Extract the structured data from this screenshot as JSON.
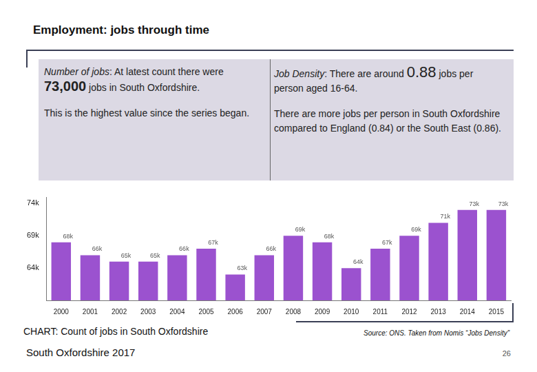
{
  "header": {
    "title": "Employment: jobs through time"
  },
  "panels": [
    {
      "label": "Number of jobs",
      "lead": ": At latest count there were ",
      "highlight": "73,000",
      "rest": " jobs in South Oxfordshire.",
      "note": "This is the highest value since the series began."
    },
    {
      "label": "Job Density",
      "lead": ": There are around ",
      "highlight": "0.88",
      "rest": " jobs per person aged 16-64.",
      "note": "There are more jobs per person in South Oxfordshire compared to England (0.84) or the South East (0.86)."
    }
  ],
  "chart_data": {
    "type": "bar",
    "title": "CHART: Count of jobs in South Oxfordshire",
    "categories": [
      "2000",
      "2001",
      "2002",
      "2003",
      "2004",
      "2005",
      "2006",
      "2007",
      "2008",
      "2009",
      "2010",
      "2011",
      "2012",
      "2013",
      "2014",
      "2015"
    ],
    "values": [
      68,
      66,
      65,
      65,
      66,
      67,
      63,
      66,
      69,
      68,
      64,
      67,
      69,
      71,
      73,
      73
    ],
    "value_labels": [
      "68k",
      "66k",
      "65k",
      "65k",
      "66k",
      "67k",
      "63k",
      "66k",
      "69k",
      "68k",
      "64k",
      "67k",
      "69k",
      "71k",
      "73k",
      "73k"
    ],
    "color": "#9b52cf",
    "ylim": [
      59,
      75
    ],
    "yticks": [
      {
        "value": 64,
        "label": "64k"
      },
      {
        "value": 69,
        "label": "69k"
      },
      {
        "value": 74,
        "label": "74k"
      }
    ],
    "grid": false,
    "data_labels": true
  },
  "source": "Source: ONS.  Taken from Nomis “Jobs Density”",
  "footer": {
    "text": "South Oxfordshire 2017",
    "page": "26"
  }
}
